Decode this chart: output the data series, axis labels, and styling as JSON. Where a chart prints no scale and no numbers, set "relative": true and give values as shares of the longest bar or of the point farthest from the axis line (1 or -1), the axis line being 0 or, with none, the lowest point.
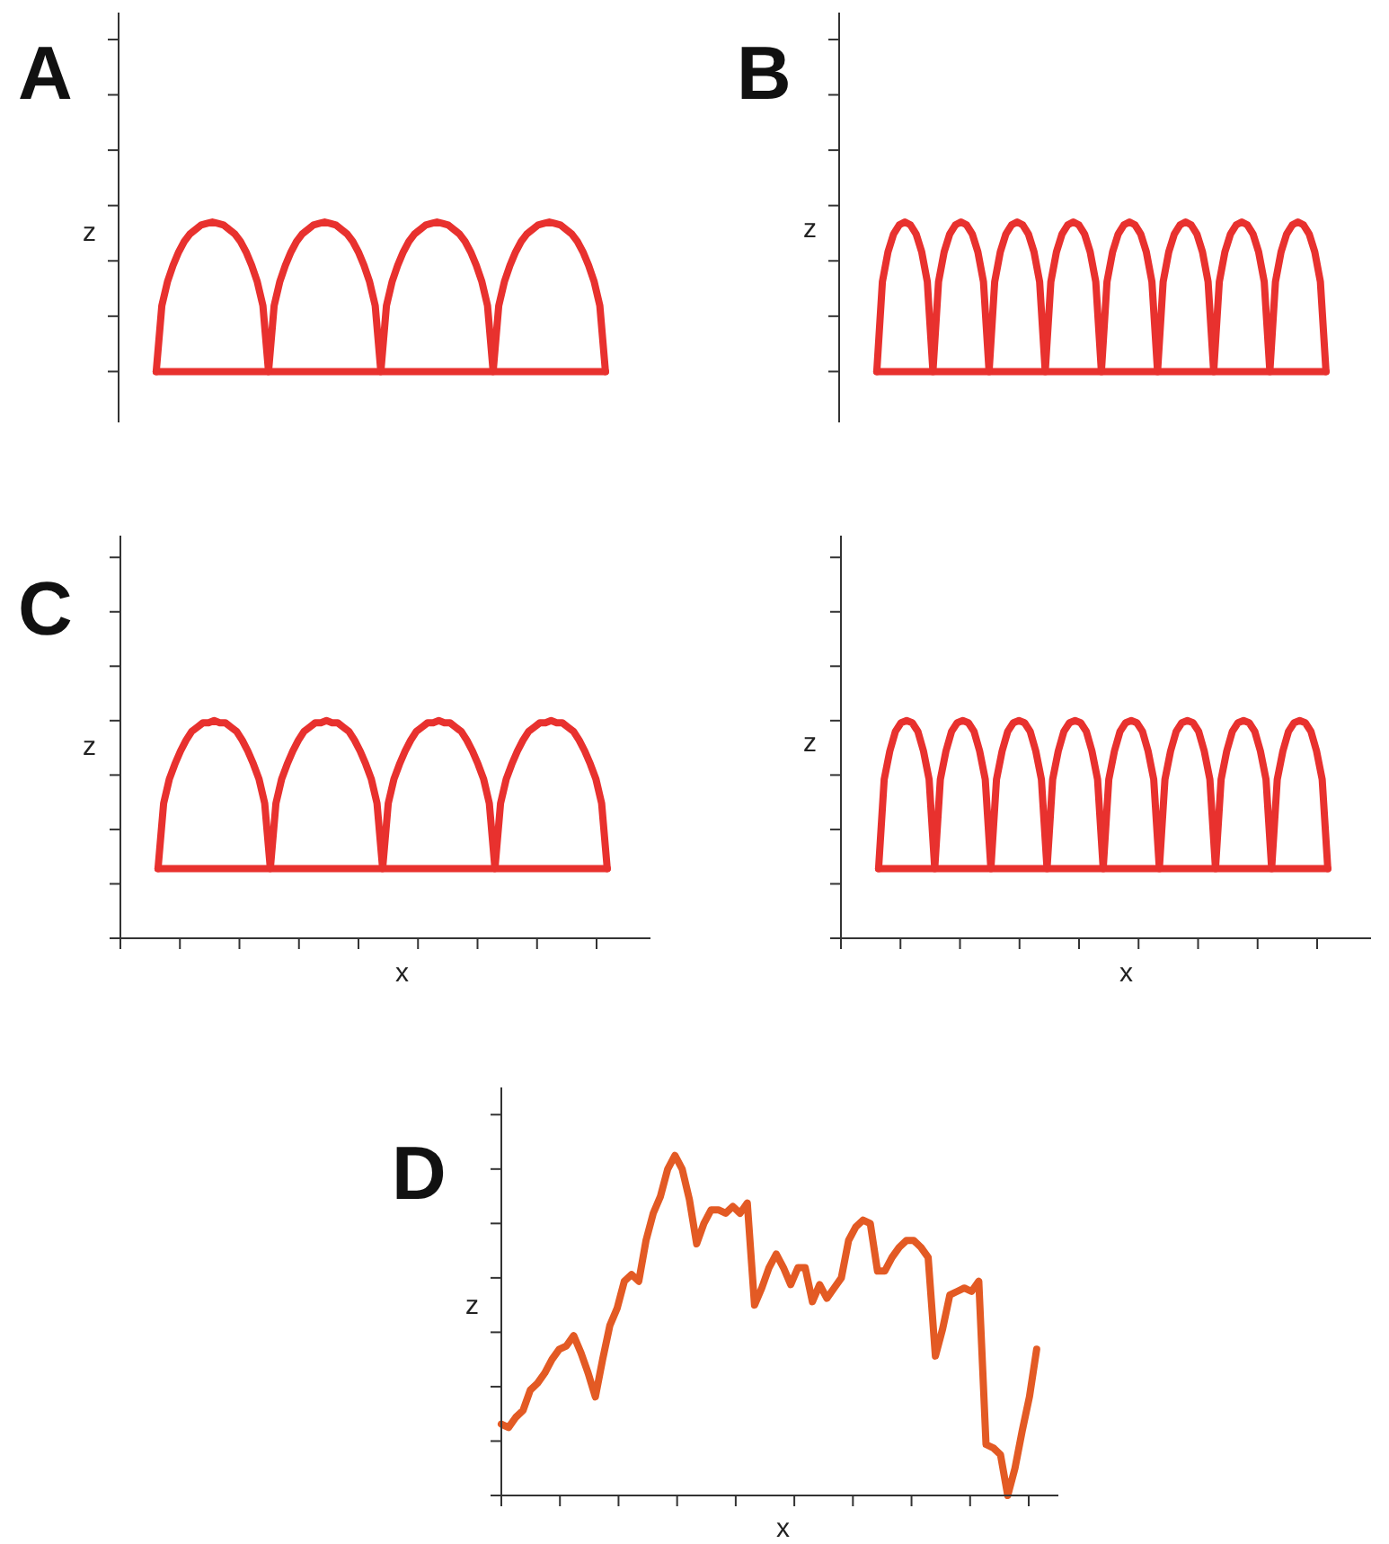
{
  "chart_data": [
    {
      "type": "line",
      "relative": true,
      "ylabel": "z",
      "annotations": [
        "A"
      ],
      "marker": "none",
      "categories": [
        null,
        null,
        null,
        null,
        null,
        null,
        null,
        null,
        null,
        null,
        null,
        null,
        null,
        null,
        null,
        null,
        null,
        null,
        null,
        null,
        null,
        null,
        null,
        null,
        null,
        null,
        null,
        null,
        null,
        null,
        null,
        null,
        null,
        null,
        null,
        null,
        null,
        null,
        null,
        null,
        null,
        null,
        null,
        null,
        null,
        null,
        null,
        null,
        null,
        null,
        null,
        null,
        null,
        null,
        null,
        null,
        null,
        null,
        null,
        null,
        null,
        null,
        null,
        null,
        null,
        null,
        null,
        null,
        null,
        null,
        null,
        null,
        null,
        null,
        null,
        null,
        null,
        null,
        null,
        null,
        null
      ],
      "series": [
        {
          "color": "#e8312e",
          "values": [
            0,
            0.44,
            0.6,
            0.71,
            0.8,
            0.87,
            0.92,
            0.95,
            0.98,
            0.99,
            1,
            0.99,
            0.98,
            0.95,
            0.92,
            0.87,
            0.8,
            0.71,
            0.6,
            0.44,
            0,
            0.44,
            0.6,
            0.71,
            0.8,
            0.87,
            0.92,
            0.95,
            0.98,
            0.99,
            1,
            0.99,
            0.98,
            0.95,
            0.92,
            0.87,
            0.8,
            0.71,
            0.6,
            0.44,
            0,
            0.44,
            0.6,
            0.71,
            0.8,
            0.87,
            0.92,
            0.95,
            0.98,
            0.99,
            1,
            0.99,
            0.98,
            0.95,
            0.92,
            0.87,
            0.8,
            0.71,
            0.6,
            0.44,
            0,
            0.44,
            0.6,
            0.71,
            0.8,
            0.87,
            0.92,
            0.95,
            0.98,
            0.99,
            1,
            0.99,
            0.98,
            0.95,
            0.92,
            0.87,
            0.8,
            0.71,
            0.6,
            0.44,
            0
          ]
        },
        {
          "color": "#e8312e",
          "values": [
            0,
            0,
            0,
            0,
            0,
            0,
            0,
            0,
            0,
            0,
            0,
            0,
            0,
            0,
            0,
            0,
            0,
            0,
            0,
            0,
            0,
            0,
            0,
            0,
            0,
            0,
            0,
            0,
            0,
            0,
            0,
            0,
            0,
            0,
            0,
            0,
            0,
            0,
            0,
            0,
            0,
            0,
            0,
            0,
            0,
            0,
            0,
            0,
            0,
            0,
            0,
            0,
            0,
            0,
            0,
            0,
            0,
            0,
            0,
            0,
            0,
            0,
            0,
            0,
            0,
            0,
            0,
            0,
            0,
            0,
            0,
            0,
            0,
            0,
            0,
            0,
            0,
            0,
            0,
            0,
            0
          ]
        }
      ]
    },
    {
      "type": "line",
      "relative": true,
      "ylabel": "z",
      "annotations": [
        "B"
      ],
      "marker": "none",
      "categories": [
        null,
        null,
        null,
        null,
        null,
        null,
        null,
        null,
        null,
        null,
        null,
        null,
        null,
        null,
        null,
        null,
        null,
        null,
        null,
        null,
        null,
        null,
        null,
        null,
        null,
        null,
        null,
        null,
        null,
        null,
        null,
        null,
        null,
        null,
        null,
        null,
        null,
        null,
        null,
        null,
        null,
        null,
        null,
        null,
        null,
        null,
        null,
        null,
        null,
        null,
        null,
        null,
        null,
        null,
        null,
        null,
        null,
        null,
        null,
        null,
        null,
        null,
        null,
        null,
        null,
        null,
        null,
        null,
        null,
        null,
        null,
        null,
        null,
        null,
        null,
        null,
        null,
        null,
        null,
        null,
        null
      ],
      "series": [
        {
          "color": "#e8312e",
          "values": [
            0,
            0.6,
            0.8,
            0.92,
            0.98,
            1,
            0.98,
            0.92,
            0.8,
            0.6,
            0,
            0.6,
            0.8,
            0.92,
            0.98,
            1,
            0.98,
            0.92,
            0.8,
            0.6,
            0,
            0.6,
            0.8,
            0.92,
            0.98,
            1,
            0.98,
            0.92,
            0.8,
            0.6,
            0,
            0.6,
            0.8,
            0.92,
            0.98,
            1,
            0.98,
            0.92,
            0.8,
            0.6,
            0,
            0.6,
            0.8,
            0.92,
            0.98,
            1,
            0.98,
            0.92,
            0.8,
            0.6,
            0,
            0.6,
            0.8,
            0.92,
            0.98,
            1,
            0.98,
            0.92,
            0.8,
            0.6,
            0,
            0.6,
            0.8,
            0.92,
            0.98,
            1,
            0.98,
            0.92,
            0.8,
            0.6,
            0,
            0.6,
            0.8,
            0.92,
            0.98,
            1,
            0.98,
            0.92,
            0.8,
            0.6,
            0
          ]
        },
        {
          "color": "#e8312e",
          "values": [
            0,
            0,
            0,
            0,
            0,
            0,
            0,
            0,
            0,
            0,
            0,
            0,
            0,
            0,
            0,
            0,
            0,
            0,
            0,
            0,
            0,
            0,
            0,
            0,
            0,
            0,
            0,
            0,
            0,
            0,
            0,
            0,
            0,
            0,
            0,
            0,
            0,
            0,
            0,
            0,
            0,
            0,
            0,
            0,
            0,
            0,
            0,
            0,
            0,
            0,
            0,
            0,
            0,
            0,
            0,
            0,
            0,
            0,
            0,
            0,
            0,
            0,
            0,
            0,
            0,
            0,
            0,
            0,
            0,
            0,
            0,
            0,
            0,
            0,
            0,
            0,
            0,
            0,
            0,
            0,
            0
          ]
        }
      ]
    },
    {
      "type": "line",
      "relative": true,
      "xlabel": "x",
      "ylabel": "z",
      "annotations": [
        "C"
      ],
      "marker": "none",
      "categories": [
        null,
        null,
        null,
        null,
        null,
        null,
        null,
        null,
        null,
        null,
        null,
        null,
        null,
        null,
        null,
        null,
        null,
        null,
        null,
        null,
        null,
        null,
        null,
        null,
        null,
        null,
        null,
        null,
        null,
        null,
        null,
        null,
        null,
        null,
        null,
        null,
        null,
        null,
        null,
        null,
        null,
        null,
        null,
        null,
        null,
        null,
        null,
        null,
        null,
        null,
        null,
        null,
        null,
        null,
        null,
        null,
        null,
        null,
        null,
        null,
        null,
        null,
        null,
        null,
        null,
        null,
        null,
        null,
        null,
        null,
        null,
        null,
        null,
        null,
        null,
        null,
        null,
        null,
        null,
        null,
        null
      ],
      "series": [
        {
          "color": "#e8312e",
          "values": [
            0.32,
            0.62,
            0.73,
            0.8,
            0.86,
            0.91,
            0.95,
            0.97,
            0.99,
            0.99,
            1,
            0.99,
            0.99,
            0.97,
            0.95,
            0.91,
            0.86,
            0.8,
            0.73,
            0.62,
            0.32,
            0.62,
            0.73,
            0.8,
            0.86,
            0.91,
            0.95,
            0.97,
            0.99,
            0.99,
            1,
            0.99,
            0.99,
            0.97,
            0.95,
            0.91,
            0.86,
            0.8,
            0.73,
            0.62,
            0.32,
            0.62,
            0.73,
            0.8,
            0.86,
            0.91,
            0.95,
            0.97,
            0.99,
            0.99,
            1,
            0.99,
            0.99,
            0.97,
            0.95,
            0.91,
            0.86,
            0.8,
            0.73,
            0.62,
            0.32,
            0.62,
            0.73,
            0.8,
            0.86,
            0.91,
            0.95,
            0.97,
            0.99,
            0.99,
            1,
            0.99,
            0.99,
            0.97,
            0.95,
            0.91,
            0.86,
            0.8,
            0.73,
            0.62,
            0.32
          ]
        },
        {
          "color": "#e8312e",
          "values": [
            0.32,
            0.32,
            0.32,
            0.32,
            0.32,
            0.32,
            0.32,
            0.32,
            0.32,
            0.32,
            0.32,
            0.32,
            0.32,
            0.32,
            0.32,
            0.32,
            0.32,
            0.32,
            0.32,
            0.32,
            0.32,
            0.32,
            0.32,
            0.32,
            0.32,
            0.32,
            0.32,
            0.32,
            0.32,
            0.32,
            0.32,
            0.32,
            0.32,
            0.32,
            0.32,
            0.32,
            0.32,
            0.32,
            0.32,
            0.32,
            0.32,
            0.32,
            0.32,
            0.32,
            0.32,
            0.32,
            0.32,
            0.32,
            0.32,
            0.32,
            0.32,
            0.32,
            0.32,
            0.32,
            0.32,
            0.32,
            0.32,
            0.32,
            0.32,
            0.32,
            0.32,
            0.32,
            0.32,
            0.32,
            0.32,
            0.32,
            0.32,
            0.32,
            0.32,
            0.32,
            0.32,
            0.32,
            0.32,
            0.32,
            0.32,
            0.32,
            0.32,
            0.32,
            0.32,
            0.32,
            0.32
          ]
        }
      ]
    },
    {
      "type": "line",
      "relative": true,
      "xlabel": "x",
      "ylabel": "z",
      "marker": "none",
      "categories": [
        null,
        null,
        null,
        null,
        null,
        null,
        null,
        null,
        null,
        null,
        null,
        null,
        null,
        null,
        null,
        null,
        null,
        null,
        null,
        null,
        null,
        null,
        null,
        null,
        null,
        null,
        null,
        null,
        null,
        null,
        null,
        null,
        null,
        null,
        null,
        null,
        null,
        null,
        null,
        null,
        null,
        null,
        null,
        null,
        null,
        null,
        null,
        null,
        null,
        null,
        null,
        null,
        null,
        null,
        null,
        null,
        null,
        null,
        null,
        null,
        null,
        null,
        null,
        null,
        null,
        null,
        null,
        null,
        null,
        null,
        null,
        null,
        null,
        null,
        null,
        null,
        null,
        null,
        null,
        null,
        null
      ],
      "series": [
        {
          "color": "#e8312e",
          "values": [
            0.32,
            0.73,
            0.86,
            0.95,
            0.99,
            1,
            0.99,
            0.95,
            0.86,
            0.73,
            0.32,
            0.73,
            0.86,
            0.95,
            0.99,
            1,
            0.99,
            0.95,
            0.86,
            0.73,
            0.32,
            0.73,
            0.86,
            0.95,
            0.99,
            1,
            0.99,
            0.95,
            0.86,
            0.73,
            0.32,
            0.73,
            0.86,
            0.95,
            0.99,
            1,
            0.99,
            0.95,
            0.86,
            0.73,
            0.32,
            0.73,
            0.86,
            0.95,
            0.99,
            1,
            0.99,
            0.95,
            0.86,
            0.73,
            0.32,
            0.73,
            0.86,
            0.95,
            0.99,
            1,
            0.99,
            0.95,
            0.86,
            0.73,
            0.32,
            0.73,
            0.86,
            0.95,
            0.99,
            1,
            0.99,
            0.95,
            0.86,
            0.73,
            0.32,
            0.73,
            0.86,
            0.95,
            0.99,
            1,
            0.99,
            0.95,
            0.86,
            0.73,
            0.32
          ]
        },
        {
          "color": "#e8312e",
          "values": [
            0.32,
            0.32,
            0.32,
            0.32,
            0.32,
            0.32,
            0.32,
            0.32,
            0.32,
            0.32,
            0.32,
            0.32,
            0.32,
            0.32,
            0.32,
            0.32,
            0.32,
            0.32,
            0.32,
            0.32,
            0.32,
            0.32,
            0.32,
            0.32,
            0.32,
            0.32,
            0.32,
            0.32,
            0.32,
            0.32,
            0.32,
            0.32,
            0.32,
            0.32,
            0.32,
            0.32,
            0.32,
            0.32,
            0.32,
            0.32,
            0.32,
            0.32,
            0.32,
            0.32,
            0.32,
            0.32,
            0.32,
            0.32,
            0.32,
            0.32,
            0.32,
            0.32,
            0.32,
            0.32,
            0.32,
            0.32,
            0.32,
            0.32,
            0.32,
            0.32,
            0.32,
            0.32,
            0.32,
            0.32,
            0.32,
            0.32,
            0.32,
            0.32,
            0.32,
            0.32,
            0.32,
            0.32,
            0.32,
            0.32,
            0.32,
            0.32,
            0.32,
            0.32,
            0.32,
            0.32,
            0.32
          ]
        }
      ]
    },
    {
      "type": "line",
      "relative": true,
      "xlabel": "x",
      "ylabel": "z",
      "annotations": [
        "D"
      ],
      "marker": "none",
      "categories": [
        null,
        null,
        null,
        null,
        null,
        null,
        null,
        null,
        null,
        null,
        null,
        null,
        null,
        null,
        null,
        null,
        null,
        null,
        null,
        null,
        null,
        null,
        null,
        null,
        null,
        null,
        null,
        null,
        null,
        null,
        null,
        null,
        null,
        null,
        null,
        null,
        null,
        null,
        null,
        null,
        null,
        null,
        null,
        null,
        null,
        null,
        null,
        null,
        null,
        null,
        null,
        null,
        null,
        null,
        null,
        null,
        null,
        null,
        null,
        null,
        null,
        null,
        null,
        null,
        null,
        null,
        null,
        null,
        null,
        null,
        null,
        null,
        null,
        null,
        null
      ],
      "series": [
        {
          "color": "#e35a24",
          "values": [
            0.21,
            0.2,
            0.23,
            0.25,
            0.31,
            0.33,
            0.36,
            0.4,
            0.43,
            0.44,
            0.47,
            0.42,
            0.36,
            0.29,
            0.4,
            0.5,
            0.55,
            0.63,
            0.65,
            0.63,
            0.75,
            0.83,
            0.88,
            0.96,
            1,
            0.96,
            0.87,
            0.74,
            0.8,
            0.84,
            0.84,
            0.83,
            0.85,
            0.83,
            0.86,
            0.56,
            0.61,
            0.67,
            0.71,
            0.67,
            0.62,
            0.67,
            0.67,
            0.57,
            0.62,
            0.58,
            0.61,
            0.64,
            0.75,
            0.79,
            0.81,
            0.8,
            0.66,
            0.66,
            0.7,
            0.73,
            0.75,
            0.75,
            0.73,
            0.7,
            0.41,
            0.49,
            0.59,
            0.6,
            0.61,
            0.6,
            0.63,
            0.15,
            0.14,
            0.12,
            0,
            0.08,
            0.19,
            0.29,
            0.43
          ]
        }
      ]
    }
  ]
}
